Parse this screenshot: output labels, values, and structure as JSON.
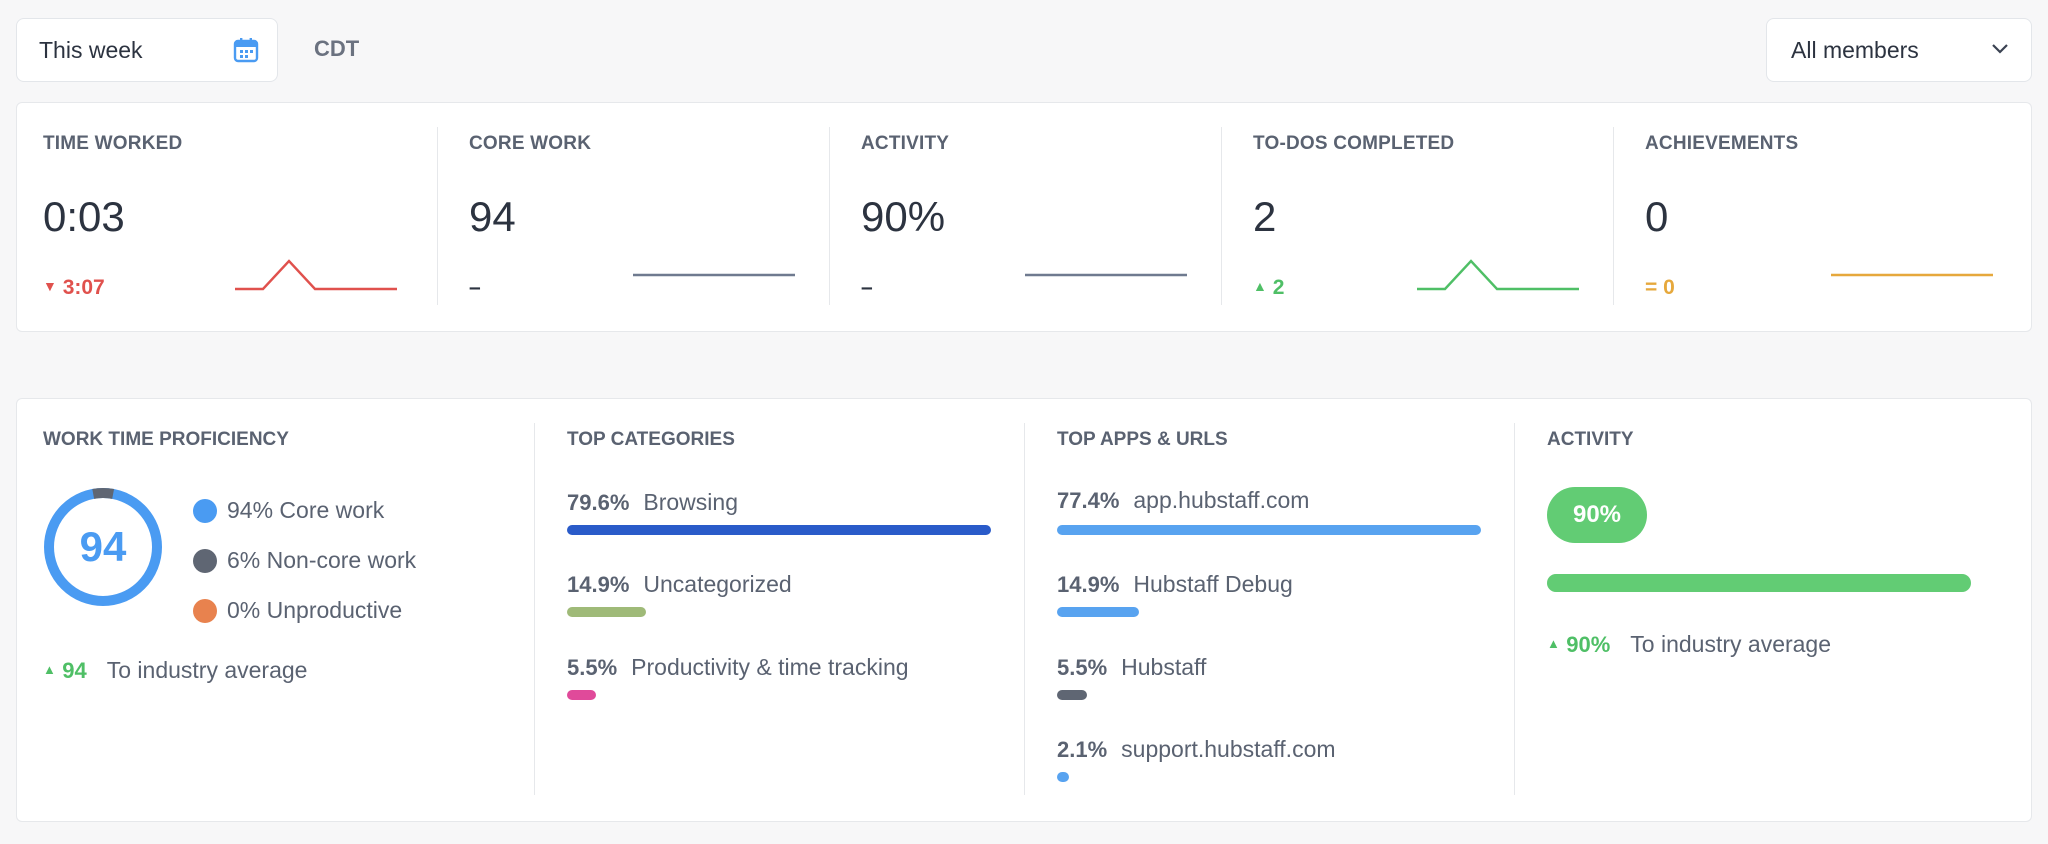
{
  "filters": {
    "date_range": "This week",
    "timezone": "CDT",
    "members": "All members"
  },
  "stats": [
    {
      "label": "TIME WORKED",
      "value": "0:03",
      "change": "3:07",
      "direction": "down"
    },
    {
      "label": "CORE WORK",
      "value": "94",
      "change": "–",
      "direction": "none"
    },
    {
      "label": "ACTIVITY",
      "value": "90%",
      "change": "–",
      "direction": "none"
    },
    {
      "label": "TO-DOS COMPLETED",
      "value": "2",
      "change": "2",
      "direction": "up"
    },
    {
      "label": "ACHIEVEMENTS",
      "value": "0",
      "change": "= 0",
      "direction": "equal"
    }
  ],
  "proficiency": {
    "label": "WORK TIME PROFICIENCY",
    "score": "94",
    "core_pct": 94,
    "legend": [
      "94% Core work",
      "6% Non-core work",
      "0% Unproductive"
    ],
    "industry_value": "94",
    "industry_label": "To industry average"
  },
  "categories": {
    "label": "TOP CATEGORIES",
    "items": [
      {
        "pct": "79.6%",
        "name": "Browsing",
        "value": 79.6,
        "color": "#2a5bc9"
      },
      {
        "pct": "14.9%",
        "name": "Uncategorized",
        "value": 14.9,
        "color": "#9fba78"
      },
      {
        "pct": "5.5%",
        "name": "Productivity & time tracking",
        "value": 5.5,
        "color": "#e04a9a"
      }
    ]
  },
  "apps": {
    "label": "TOP APPS & URLS",
    "items": [
      {
        "pct": "77.4%",
        "name": "app.hubstaff.com",
        "value": 77.4,
        "color": "#58a3f0"
      },
      {
        "pct": "14.9%",
        "name": "Hubstaff Debug",
        "value": 14.9,
        "color": "#58a3f0"
      },
      {
        "pct": "5.5%",
        "name": "Hubstaff",
        "value": 5.5,
        "color": "#5f6673"
      },
      {
        "pct": "2.1%",
        "name": "support.hubstaff.com",
        "value": 2.1,
        "color": "#58a3f0"
      }
    ]
  },
  "activity": {
    "label": "ACTIVITY",
    "badge": "90%",
    "value": 90,
    "industry_value": "90%",
    "industry_label": "To industry average"
  },
  "colors": {
    "core": "#4a9bf2",
    "noncore": "#5f6673",
    "unproductive": "#e8824e",
    "green": "#4fbf66",
    "red": "#e0514d",
    "orange": "#e6a83c",
    "gray_line": "#6f7a8f"
  }
}
